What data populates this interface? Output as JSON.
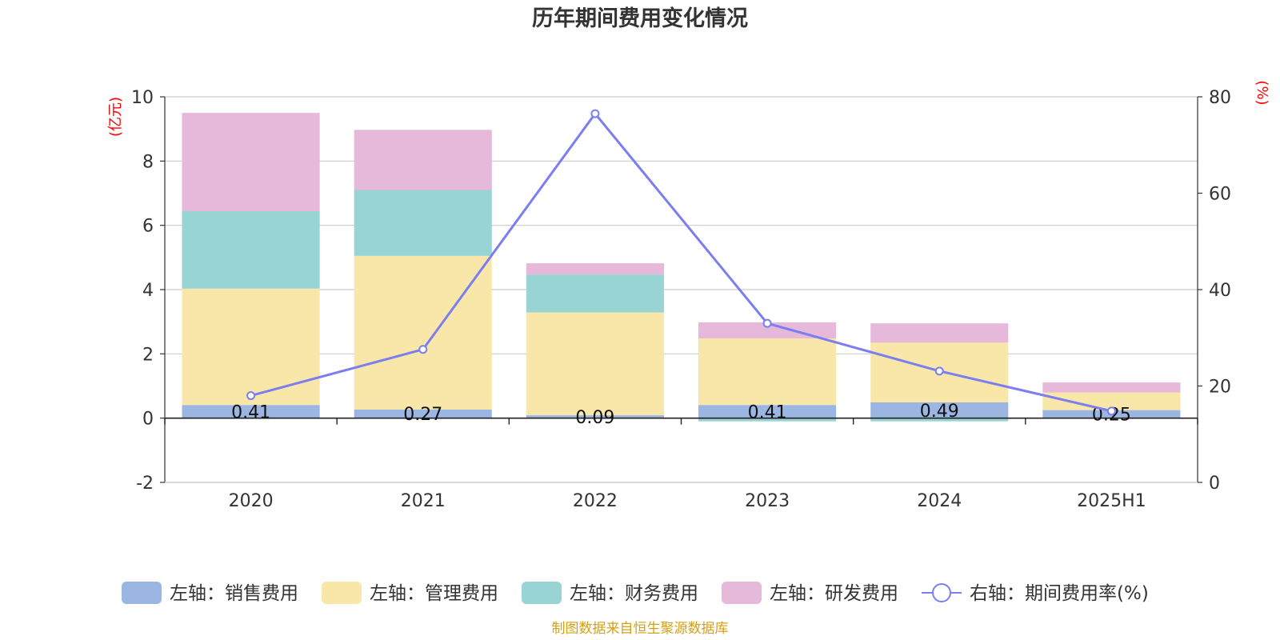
{
  "chart_data": {
    "type": "bar",
    "stacked": true,
    "title": "历年期间费用变化情况",
    "categories": [
      "2020",
      "2021",
      "2022",
      "2023",
      "2024",
      "2025H1"
    ],
    "left_axis": {
      "unit_label": "(亿元)",
      "ylim": [
        -2,
        10
      ],
      "ticks": [
        "-2",
        "0",
        "2",
        "4",
        "6",
        "8",
        "10"
      ]
    },
    "right_axis": {
      "unit_label": "(%)",
      "ylim": [
        0,
        80
      ],
      "ticks": [
        "0",
        "20",
        "40",
        "60",
        "80"
      ]
    },
    "series": [
      {
        "name": "左轴：销售费用",
        "axis": "left",
        "type": "bar",
        "color": "#9bb6e3",
        "values": [
          0.41,
          0.27,
          0.09,
          0.41,
          0.49,
          0.25
        ],
        "labels": [
          "0.41",
          "0.27",
          "0.09",
          "0.41",
          "0.49",
          "0.25"
        ]
      },
      {
        "name": "左轴：管理费用",
        "axis": "left",
        "type": "bar",
        "color": "#f8e7a8",
        "values": [
          3.62,
          4.78,
          3.2,
          2.07,
          1.86,
          0.55
        ]
      },
      {
        "name": "左轴：财务费用",
        "axis": "left",
        "type": "bar",
        "color": "#98d4d4",
        "values": [
          2.41,
          2.05,
          1.18,
          -0.1,
          -0.1,
          0.0
        ]
      },
      {
        "name": "左轴：研发费用",
        "axis": "left",
        "type": "bar",
        "color": "#e6b8d9",
        "values": [
          3.06,
          1.87,
          0.35,
          0.5,
          0.6,
          0.31
        ]
      },
      {
        "name": "右轴：期间费用率(%)",
        "axis": "right",
        "type": "line",
        "color": "#7b7ef0",
        "values": [
          18.0,
          27.6,
          76.5,
          33.0,
          23.1,
          14.8
        ]
      }
    ],
    "grid": true,
    "legend_position": "bottom",
    "source": "制图数据来自恒生聚源数据库"
  }
}
